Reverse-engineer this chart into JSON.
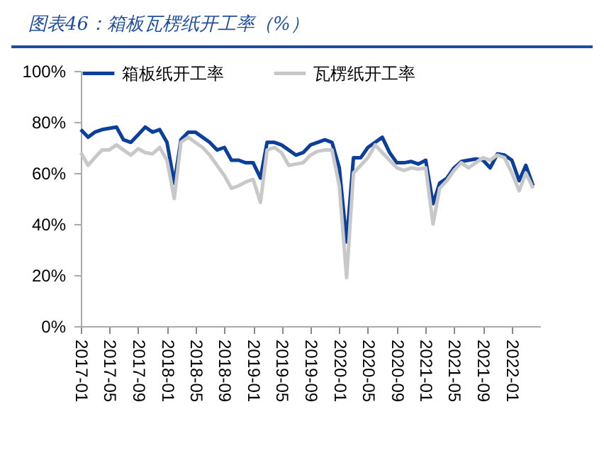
{
  "chart_data": {
    "type": "line",
    "title": "图表46：箱板瓦楞纸开工率（%）",
    "x": [
      "2017-01",
      "2017-02",
      "2017-03",
      "2017-04",
      "2017-05",
      "2017-06",
      "2017-07",
      "2017-08",
      "2017-09",
      "2017-10",
      "2017-11",
      "2017-12",
      "2018-01",
      "2018-02",
      "2018-03",
      "2018-04",
      "2018-05",
      "2018-06",
      "2018-07",
      "2018-08",
      "2018-09",
      "2018-10",
      "2018-11",
      "2018-12",
      "2019-01",
      "2019-02",
      "2019-03",
      "2019-04",
      "2019-05",
      "2019-06",
      "2019-07",
      "2019-08",
      "2019-09",
      "2019-10",
      "2019-11",
      "2019-12",
      "2020-01",
      "2020-02",
      "2020-03",
      "2020-04",
      "2020-05",
      "2020-06",
      "2020-07",
      "2020-08",
      "2020-09",
      "2020-10",
      "2020-11",
      "2020-12",
      "2021-01",
      "2021-02",
      "2021-03",
      "2021-04",
      "2021-05",
      "2021-06",
      "2021-07",
      "2021-08",
      "2021-09",
      "2021-10",
      "2021-11",
      "2021-12",
      "2022-01",
      "2022-02",
      "2022-03",
      "2022-04"
    ],
    "series": [
      {
        "name": "箱板纸开工率",
        "color": "#0b3f9a",
        "values": [
          77,
          74,
          76,
          77,
          77.5,
          78,
          73,
          72,
          75,
          78,
          76,
          77,
          72,
          56,
          73,
          76,
          76,
          74,
          72,
          69,
          70,
          65,
          65,
          64,
          64,
          58,
          72,
          72,
          71,
          69,
          67,
          68,
          71,
          72,
          73,
          72,
          62,
          33,
          66,
          66,
          70,
          72,
          74,
          68,
          64,
          64,
          64.5,
          63.5,
          65,
          48,
          56,
          58,
          62,
          64.5,
          65,
          65.5,
          65,
          62,
          67.5,
          67,
          65,
          57,
          63,
          55
        ]
      },
      {
        "name": "瓦楞纸开工率",
        "color": "#c8c8c8",
        "values": [
          68,
          63,
          66,
          69,
          69,
          71,
          69,
          67,
          69.5,
          68,
          67.5,
          70,
          65,
          50,
          72,
          74,
          72,
          70,
          67,
          63,
          59,
          54,
          55,
          56.5,
          57.5,
          48.5,
          69,
          70,
          68,
          63,
          63.5,
          64,
          67,
          68.5,
          69,
          69,
          55,
          19,
          60,
          63,
          66,
          71,
          68,
          65,
          62,
          61,
          62,
          61.5,
          62,
          40,
          54,
          57,
          61,
          64,
          62,
          64,
          66,
          65,
          67,
          66,
          60,
          53,
          60,
          54
        ]
      }
    ],
    "xlim": [
      "2017-01",
      "2022-05"
    ],
    "xticks": [
      "2017-01",
      "2017-05",
      "2017-09",
      "2018-01",
      "2018-05",
      "2018-09",
      "2019-01",
      "2019-05",
      "2019-09",
      "2020-01",
      "2020-05",
      "2020-09",
      "2021-01",
      "2021-05",
      "2021-09",
      "2022-01"
    ],
    "ylim": [
      0,
      100
    ],
    "yticks": [
      {
        "value": 0,
        "label": "0%"
      },
      {
        "value": 20,
        "label": "20%"
      },
      {
        "value": 40,
        "label": "40%"
      },
      {
        "value": 60,
        "label": "60%"
      },
      {
        "value": 80,
        "label": "80%"
      },
      {
        "value": 100,
        "label": "100%"
      }
    ],
    "grid": false,
    "legend": "top",
    "line_style": "solid"
  }
}
